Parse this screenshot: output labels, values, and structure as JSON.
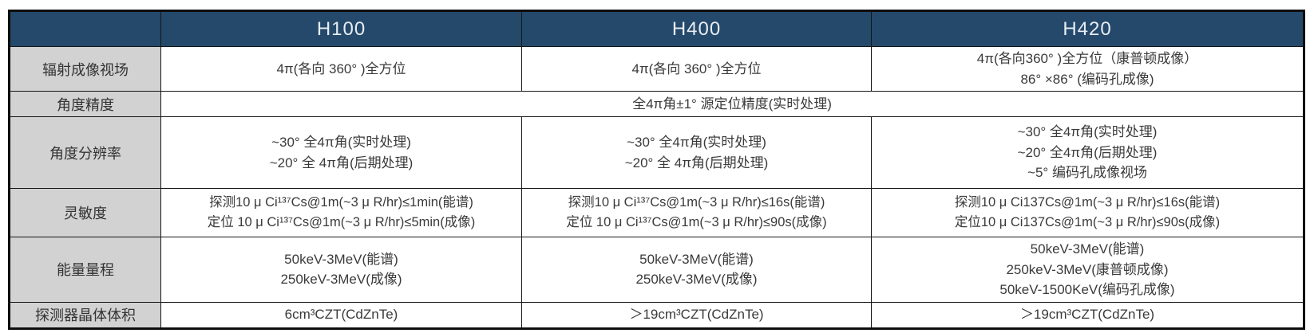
{
  "colors": {
    "header_bg": "#24496b",
    "header_text": "#e8edf3",
    "label_bg": "#d2d2d2",
    "body_bg": "#ffffff",
    "border": "#161616",
    "text": "#3a3a3a"
  },
  "table": {
    "products": [
      "H100",
      "H400",
      "H420"
    ],
    "rows": [
      {
        "label": "辐射成像视场",
        "h100": [
          "4π(各向 360° )全方位"
        ],
        "h400": [
          "4π(各向 360° )全方位"
        ],
        "h420": [
          "4π(各向360° )全方位（康普顿成像）",
          "86° ×86° (编码孔成像)"
        ]
      },
      {
        "label": "角度精度",
        "all": [
          "全4π角±1° 源定位精度(实时处理)"
        ]
      },
      {
        "label": "角度分辨率",
        "h100": [
          "~30° 全4π角(实时处理)",
          "~20° 全 4π角(后期处理)"
        ],
        "h400": [
          "~30° 全4π角(实时处理)",
          "~20° 全 4π角(后期处理)"
        ],
        "h420": [
          "~30° 全4π角(实时处理)",
          "~20° 全4π角(后期处理)",
          "~5° 编码孔成像视场"
        ]
      },
      {
        "label": "灵敏度",
        "h100": [
          "探测10 μ Ci¹³⁷Cs@1m(~3 μ R/hr)≤1min(能谱)",
          "定位 10 μ Ci¹³⁷Cs@1m(~3 μ R/hr)≤5min(成像)"
        ],
        "h400": [
          "探测10 μ Ci¹³⁷Cs@1m(~3 μ R/hr)≤16s(能谱)",
          "定位 10 μ Ci¹³⁷Cs@1m(~3 μ R/hr)≤90s(成像)"
        ],
        "h420": [
          "探测10 μ Ci137Cs@1m(~3 μ R/hr)≤16s(能谱)",
          "定位10 μ Ci137Cs@1m(~3 μ R/hr)≤90s(成像)"
        ]
      },
      {
        "label": "能量量程",
        "h100": [
          "50keV-3MeV(能谱)",
          "250keV-3MeV(成像)"
        ],
        "h400": [
          "50keV-3MeV(能谱)",
          "250keV-3MeV(成像)"
        ],
        "h420": [
          "50keV-3MeV(能谱)",
          "250keV-3MeV(康普顿成像)",
          "50keV-1500KeV(编码孔成像)"
        ]
      },
      {
        "label": "探测器晶体体积",
        "h100": [
          "6cm³CZT(CdZnTe)"
        ],
        "h400": [
          "＞19cm³CZT(CdZnTe)"
        ],
        "h420": [
          "＞19cm³CZT(CdZnTe)"
        ]
      }
    ]
  }
}
